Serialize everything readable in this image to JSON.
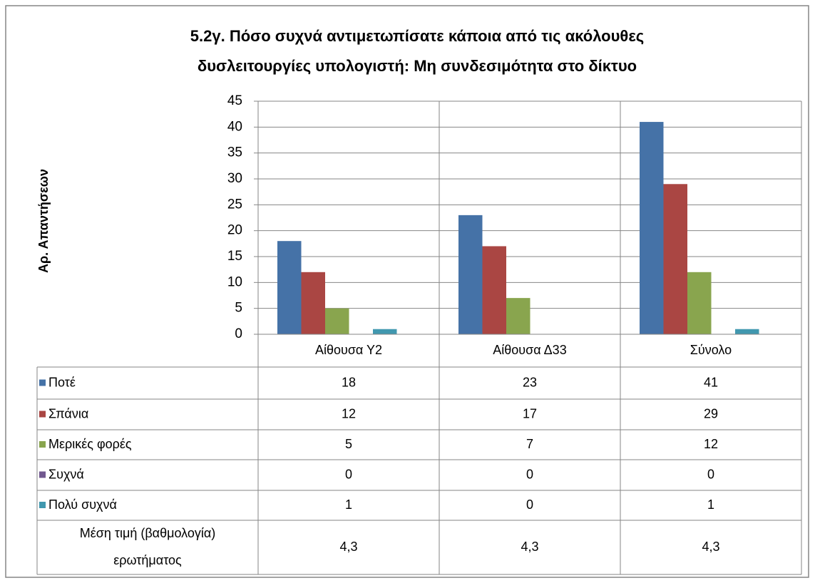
{
  "chart_data": {
    "type": "bar",
    "title": [
      "5.2γ. Πόσο συχνά αντιμετωπίσατε κάποια από τις ακόλουθες",
      "δυσλειτουργίες υπολογιστή: Μη συνδεσιμότητα στο δίκτυο"
    ],
    "y_label": "Αρ. Απαντήσεων",
    "categories": [
      "Αίθουσα Υ2",
      "Αίθουσα Δ33",
      "Σύνολο"
    ],
    "series": [
      {
        "name": "Ποτέ",
        "color": "#4572a7",
        "values": [
          18,
          23,
          41
        ]
      },
      {
        "name": "Σπάνια",
        "color": "#aa4643",
        "values": [
          12,
          17,
          29
        ]
      },
      {
        "name": "Μερικές φορές",
        "color": "#89a54e",
        "values": [
          5,
          7,
          12
        ]
      },
      {
        "name": "Συχνά",
        "color": "#71588f",
        "values": [
          0,
          0,
          0
        ]
      },
      {
        "name": "Πολύ συχνά",
        "color": "#4198af",
        "values": [
          1,
          0,
          1
        ]
      }
    ],
    "extra_row": {
      "label": [
        "Μέση τιμή (βαθμολογία)",
        "ερωτήματος"
      ],
      "values": [
        "4,3",
        "4,3",
        "4,3"
      ]
    },
    "ylim": [
      0,
      45
    ],
    "yticks": [
      0,
      5,
      10,
      15,
      20,
      25,
      30,
      35,
      40,
      45
    ],
    "grid": true
  }
}
